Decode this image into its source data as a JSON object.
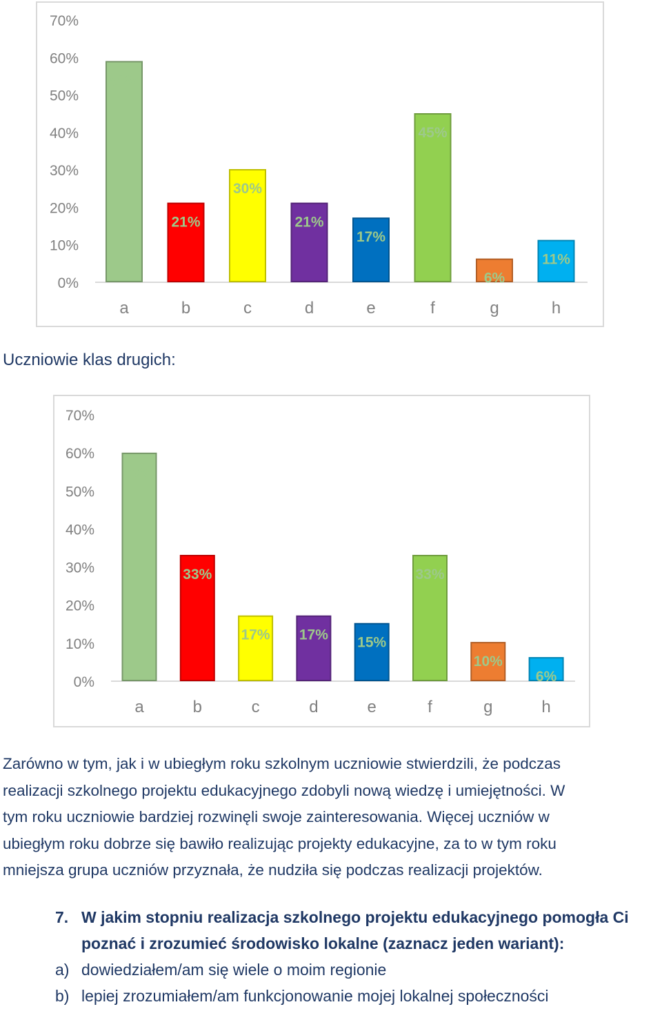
{
  "charts": [
    {
      "chart_data": {
        "type": "bar",
        "categories": [
          "a",
          "b",
          "c",
          "d",
          "e",
          "f",
          "g",
          "h"
        ],
        "values": [
          59,
          21,
          30,
          21,
          17,
          45,
          6,
          11
        ],
        "labels": [
          "59%",
          "21%",
          "30%",
          "21%",
          "17%",
          "45%",
          "6%",
          "11%"
        ],
        "colors": [
          "#9dc98a",
          "#ff0000",
          "#ffff00",
          "#7030a0",
          "#0070c0",
          "#92d050",
          "#ed7d31",
          "#00b0f0"
        ],
        "ylim": [
          0,
          70
        ],
        "yticks": [
          "0%",
          "10%",
          "20%",
          "30%",
          "40%",
          "50%",
          "60%",
          "70%"
        ],
        "grid": false,
        "title": "",
        "xlabel": "",
        "ylabel": ""
      }
    },
    {
      "chart_data": {
        "type": "bar",
        "categories": [
          "a",
          "b",
          "c",
          "d",
          "e",
          "f",
          "g",
          "h"
        ],
        "values": [
          60,
          33,
          17,
          17,
          15,
          33,
          10,
          6
        ],
        "labels": [
          "60%",
          "33%",
          "17%",
          "17%",
          "15%",
          "33%",
          "10%",
          "6%"
        ],
        "colors": [
          "#9dc98a",
          "#ff0000",
          "#ffff00",
          "#7030a0",
          "#0070c0",
          "#92d050",
          "#ed7d31",
          "#00b0f0"
        ],
        "ylim": [
          0,
          70
        ],
        "yticks": [
          "0%",
          "10%",
          "20%",
          "30%",
          "40%",
          "50%",
          "60%",
          "70%"
        ],
        "grid": false,
        "title": "",
        "xlabel": "",
        "ylabel": ""
      }
    }
  ],
  "section_heading": "Uczniowie klas drugich:",
  "paragraph": [
    "Zarówno w tym, jak i w ubiegłym roku szkolnym uczniowie stwierdzili, że podczas",
    "realizacji szkolnego projektu edukacyjnego zdobyli nową wiedzę i umiejętności. W",
    "tym roku uczniowie bardziej rozwinęli swoje zainteresowania. Więcej uczniów w",
    "ubiegłym roku dobrze się bawiło realizując projekty edukacyjne, za to w tym roku",
    "mniejsza grupa uczniów przyznała, że nudziła się podczas realizacji projektów."
  ],
  "question": {
    "number": "7.",
    "text": "W jakim stopniu realizacja szkolnego projektu edukacyjnego pomogła Ci poznać i zrozumieć środowisko lokalne (zaznacz jeden wariant):",
    "options": [
      {
        "label": "a)",
        "text": "dowiedziałem/am się wiele o moim regionie"
      },
      {
        "label": "b)",
        "text": "lepiej zrozumiałem/am funkcjonowanie mojej lokalnej społeczności"
      }
    ]
  }
}
